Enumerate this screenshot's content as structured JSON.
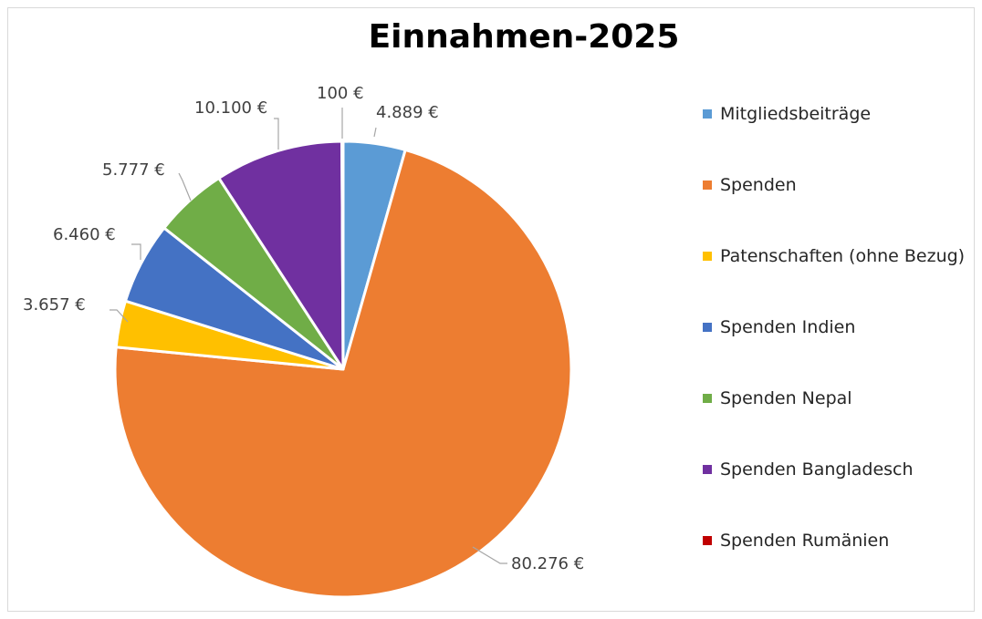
{
  "chart_data": {
    "type": "pie",
    "title": "Einnahmen-2025",
    "categories": [
      "Mitgliedsbeiträge",
      "Spenden",
      "Patenschaften (ohne Bezug)",
      "Spenden Indien",
      "Spenden Nepal",
      "Spenden Bangladesch",
      "Spenden Rumänien"
    ],
    "values": [
      4889,
      80276,
      3657,
      6460,
      5777,
      10100,
      100
    ],
    "labels": [
      "4.889 €",
      "80.276 €",
      "3.657 €",
      "6.460 €",
      "5.777 €",
      "10.100 €",
      "100 €"
    ],
    "colors": [
      "#5b9bd5",
      "#ed7d31",
      "#ffc000",
      "#4472c4",
      "#70ad47",
      "#7030a0",
      "#c00000"
    ],
    "legend_position": "right",
    "start_angle": "12 o'clock",
    "direction": "clockwise"
  }
}
